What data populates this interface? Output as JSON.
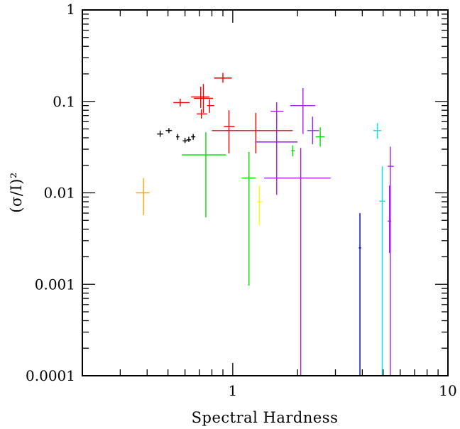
{
  "chart_data": {
    "type": "scatter",
    "xlabel": "Spectral Hardness",
    "ylabel": "(σ/I)²",
    "xscale": "log",
    "yscale": "log",
    "xlim": [
      0.2,
      10
    ],
    "ylim": [
      0.0001,
      1
    ],
    "x_tick_labels": [
      {
        "value": 1,
        "label": "1"
      },
      {
        "value": 10,
        "label": "10"
      }
    ],
    "y_tick_labels": [
      {
        "value": 1,
        "label": "1"
      },
      {
        "value": 0.1,
        "label": "0.1"
      },
      {
        "value": 0.01,
        "label": "0.01"
      },
      {
        "value": 0.001,
        "label": "0.001"
      },
      {
        "value": 0.0001,
        "label": "0.0001"
      }
    ],
    "grid": false,
    "legend": "none",
    "series": [
      {
        "color": "#000000",
        "points": [
          {
            "x": 0.46,
            "y": 0.044,
            "xerr": [
              0.445,
              0.475
            ],
            "yerr": [
              0.041,
              0.048
            ]
          },
          {
            "x": 0.505,
            "y": 0.048,
            "xerr": [
              0.488,
              0.522
            ],
            "yerr": [
              0.045,
              0.051
            ]
          },
          {
            "x": 0.555,
            "y": 0.041,
            "xerr": [
              0.545,
              0.565
            ],
            "yerr": [
              0.038,
              0.044
            ]
          },
          {
            "x": 0.6,
            "y": 0.037,
            "xerr": [
              0.585,
              0.615
            ],
            "yerr": [
              0.035,
              0.04
            ]
          },
          {
            "x": 0.625,
            "y": 0.038,
            "xerr": [
              0.61,
              0.64
            ],
            "yerr": [
              0.036,
              0.041
            ]
          },
          {
            "x": 0.655,
            "y": 0.041,
            "xerr": [
              0.64,
              0.67
            ],
            "yerr": [
              0.038,
              0.044
            ]
          }
        ]
      },
      {
        "color": "#ee0000",
        "points": [
          {
            "x": 0.57,
            "y": 0.097,
            "xerr": [
              0.53,
              0.63
            ],
            "yerr": [
              0.088,
              0.107
            ]
          },
          {
            "x": 0.71,
            "y": 0.112,
            "xerr": [
              0.64,
              0.78
            ],
            "yerr": [
              0.085,
              0.145
            ]
          },
          {
            "x": 0.73,
            "y": 0.108,
            "xerr": [
              0.66,
              0.81
            ],
            "yerr": [
              0.075,
              0.155
            ]
          },
          {
            "x": 0.715,
            "y": 0.073,
            "xerr": [
              0.68,
              0.76
            ],
            "yerr": [
              0.065,
              0.082
            ]
          },
          {
            "x": 0.78,
            "y": 0.09,
            "xerr": [
              0.76,
              0.82
            ],
            "yerr": [
              0.075,
              0.105
            ]
          },
          {
            "x": 0.9,
            "y": 0.18,
            "xerr": [
              0.82,
              0.99
            ],
            "yerr": [
              0.16,
              0.205
            ]
          },
          {
            "x": 0.96,
            "y": 0.053,
            "xerr": [
              0.91,
              1.02
            ],
            "yerr": [
              0.027,
              0.08
            ]
          },
          {
            "x": 1.28,
            "y": 0.048,
            "xerr": [
              0.8,
              1.9
            ],
            "yerr": [
              0.027,
              0.075
            ]
          }
        ]
      },
      {
        "color": "#ffa500",
        "points": [
          {
            "x": 0.385,
            "y": 0.01,
            "xerr": [
              0.355,
              0.41
            ],
            "yerr": [
              0.0057,
              0.0145
            ]
          }
        ]
      },
      {
        "color": "#00dd00",
        "points": [
          {
            "x": 0.75,
            "y": 0.026,
            "xerr": [
              0.58,
              0.93
            ],
            "yerr": [
              0.0054,
              0.046
            ]
          },
          {
            "x": 1.19,
            "y": 0.0145,
            "xerr": [
              1.1,
              1.28
            ],
            "yerr": [
              0.00097,
              0.028
            ]
          },
          {
            "x": 1.9,
            "y": 0.029,
            "xerr": [
              1.87,
              1.94
            ],
            "yerr": [
              0.025,
              0.033
            ]
          },
          {
            "x": 2.55,
            "y": 0.041,
            "xerr": [
              2.43,
              2.67
            ],
            "yerr": [
              0.032,
              0.052
            ]
          }
        ]
      },
      {
        "color": "#ffff00",
        "points": [
          {
            "x": 1.33,
            "y": 0.008,
            "xerr": [
              1.3,
              1.37
            ],
            "yerr": [
              0.0044,
              0.012
            ]
          }
        ]
      },
      {
        "color": "#a020f0",
        "points": [
          {
            "x": 1.6,
            "y": 0.078,
            "xerr": [
              1.5,
              1.72
            ],
            "yerr": [
              0.061,
              0.098
            ]
          },
          {
            "x": 1.6,
            "y": 0.036,
            "xerr": [
              1.27,
              2.0
            ],
            "yerr": [
              0.0095,
              0.065
            ]
          },
          {
            "x": 2.12,
            "y": 0.09,
            "xerr": [
              1.85,
              2.42
            ],
            "yerr": [
              0.044,
              0.14
            ]
          },
          {
            "x": 2.07,
            "y": 0.0145,
            "xerr": [
              1.4,
              2.85
            ],
            "yerr": [
              0.0001,
              0.031
            ]
          },
          {
            "x": 2.35,
            "y": 0.048,
            "xerr": [
              2.22,
              2.52
            ],
            "yerr": [
              0.034,
              0.068
            ]
          },
          {
            "x": 5.4,
            "y": 0.0195,
            "xerr": [
              5.25,
              5.6
            ],
            "yerr": [
              0.0001,
              0.032
            ]
          },
          {
            "x": 5.35,
            "y": 0.0049,
            "xerr": [
              5.25,
              5.45
            ],
            "yerr": [
              0.0022,
              0.012
            ]
          }
        ]
      },
      {
        "color": "#0000cd",
        "points": [
          {
            "x": 3.9,
            "y": 0.0025,
            "xerr": [
              3.85,
              3.95
            ],
            "yerr": [
              0.0001,
              0.006
            ]
          }
        ]
      },
      {
        "color": "#00e5ee",
        "points": [
          {
            "x": 4.7,
            "y": 0.048,
            "xerr": [
              4.5,
              4.9
            ],
            "yerr": [
              0.039,
              0.058
            ]
          },
          {
            "x": 4.95,
            "y": 0.0081,
            "xerr": [
              4.8,
              5.1
            ],
            "yerr": [
              0.0001,
              0.0195
            ]
          }
        ]
      }
    ]
  }
}
